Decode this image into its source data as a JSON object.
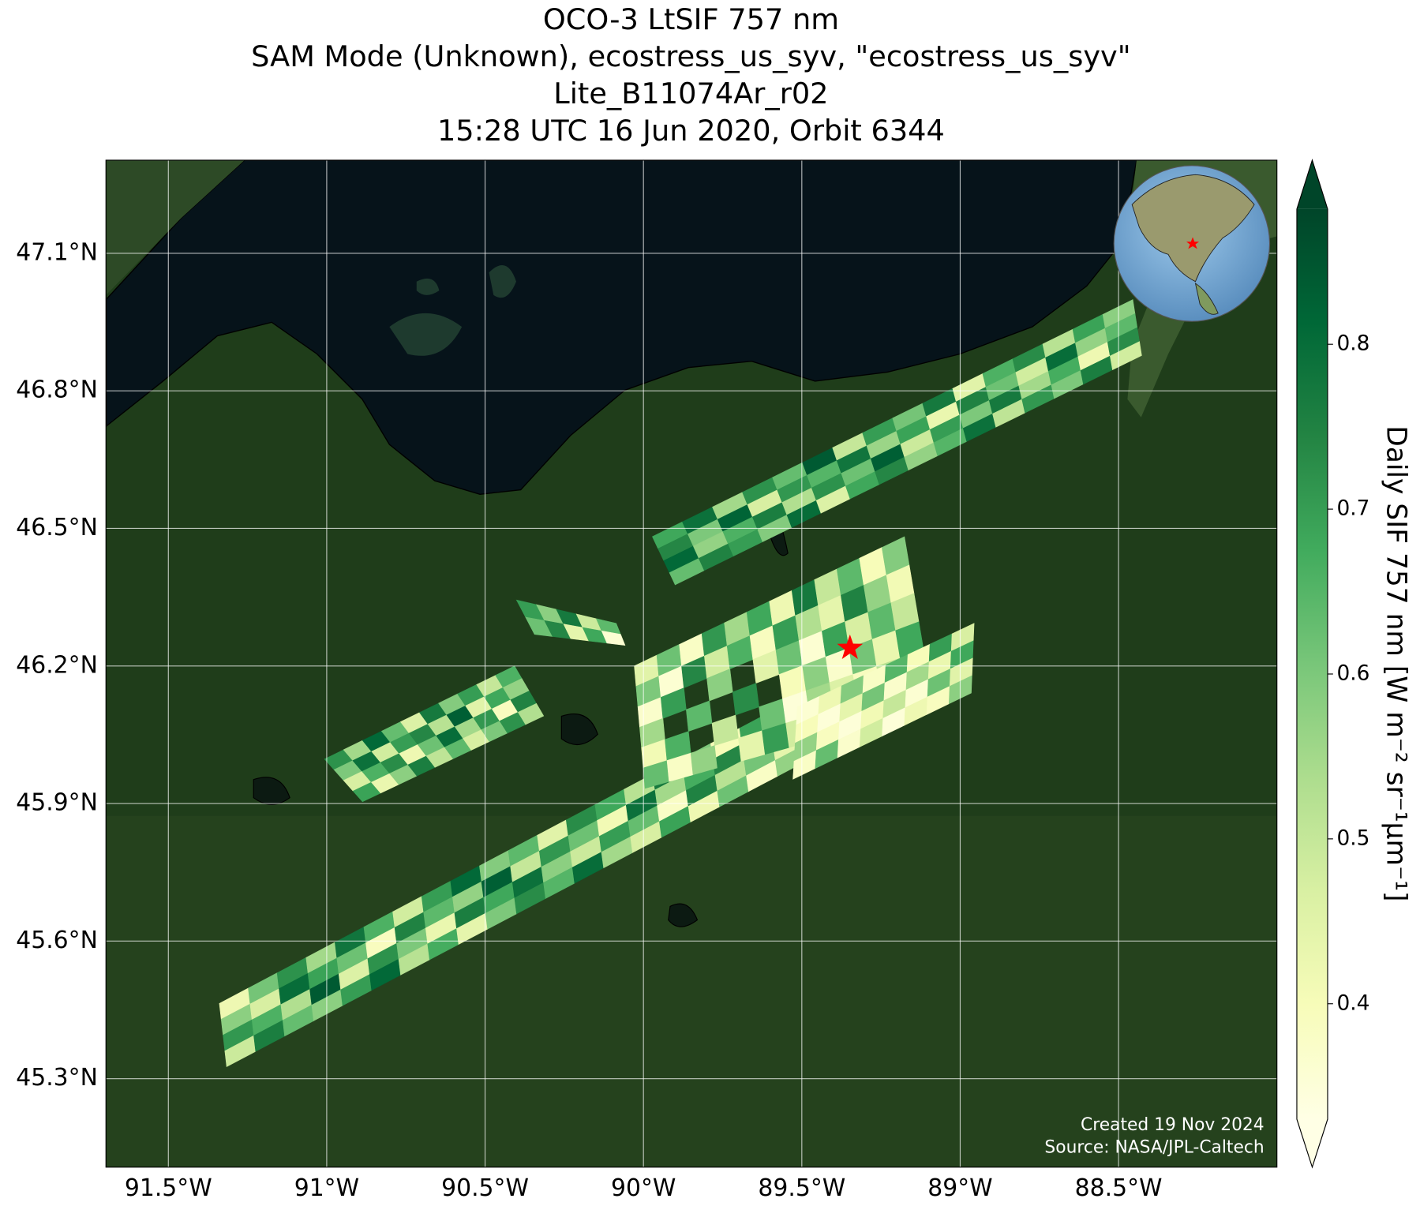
{
  "chart_data": {
    "type": "map",
    "title": [
      "OCO-3 LtSIF 757 nm",
      "SAM Mode (Unknown), ecostress_us_syv, \"ecostress_us_syv\"",
      "Lite_B11074Ar_r02",
      "15:28 UTC 16 Jun 2020, Orbit 6344"
    ],
    "xlim": [
      -91.697,
      -88.0
    ],
    "ylim": [
      45.107,
      47.303
    ],
    "xticks": [
      {
        "value": -91.5,
        "label": "91.5°W"
      },
      {
        "value": -91,
        "label": "91°W"
      },
      {
        "value": -90.5,
        "label": "90.5°W"
      },
      {
        "value": -90,
        "label": "90°W"
      },
      {
        "value": -89.5,
        "label": "89.5°W"
      },
      {
        "value": -89,
        "label": "89°W"
      },
      {
        "value": -88.5,
        "label": "88.5°W"
      }
    ],
    "yticks": [
      {
        "value": 47.1,
        "label": "47.1°N"
      },
      {
        "value": 46.8,
        "label": "46.8°N"
      },
      {
        "value": 46.5,
        "label": "46.5°N"
      },
      {
        "value": 46.2,
        "label": "46.2°N"
      },
      {
        "value": 45.9,
        "label": "45.9°N"
      },
      {
        "value": 45.6,
        "label": "45.6°N"
      },
      {
        "value": 45.3,
        "label": "45.3°N"
      }
    ],
    "grid": true,
    "colorbar": {
      "label": "Daily SIF 757 nm [W m⁻² sr⁻¹μm⁻¹]",
      "lim": [
        0.33,
        0.882
      ],
      "ticks": [
        0.4,
        0.5,
        0.6,
        0.7,
        0.8
      ],
      "extend": "both",
      "colormap": [
        "#ffffe5",
        "#f7fcb9",
        "#d9f0a3",
        "#addd8e",
        "#78c679",
        "#41ab5d",
        "#238443",
        "#006837",
        "#004529"
      ]
    },
    "site": {
      "lon": -89.348,
      "lat": 46.239,
      "color": "#ff0000"
    },
    "swaths": [
      {
        "lon": [
          -91.339,
          -91.316,
          -89.514,
          -89.485
        ],
        "lat": [
          45.464,
          45.326,
          46.131,
          45.993
        ],
        "values": [
          [
            0.42,
            0.61,
            0.72,
            0.55,
            0.78,
            0.66,
            0.48,
            0.7,
            0.81,
            0.59,
            0.64,
            0.45,
            0.73,
            0.68,
            0.52,
            0.77,
            0.6,
            0.4,
            0.69,
            0.57
          ],
          [
            0.58,
            0.47,
            0.8,
            0.69,
            0.62,
            0.39,
            0.75,
            0.64,
            0.57,
            0.83,
            0.5,
            0.71,
            0.62,
            0.41,
            0.79,
            0.55,
            0.67,
            0.74,
            0.45,
            0.63
          ],
          [
            0.71,
            0.66,
            0.53,
            0.84,
            0.46,
            0.72,
            0.6,
            0.43,
            0.76,
            0.68,
            0.79,
            0.58,
            0.49,
            0.7,
            0.63,
            0.38,
            0.75,
            0.52,
            0.61,
            0.44
          ],
          [
            0.49,
            0.76,
            0.63,
            0.58,
            0.7,
            0.81,
            0.52,
            0.67,
            0.44,
            0.6,
            0.73,
            0.65,
            0.8,
            0.55,
            0.47,
            0.69,
            0.42,
            0.62,
            0.38,
            0.57
          ]
        ]
      },
      {
        "lon": [
          -89.972,
          -89.9,
          -88.455,
          -88.427
        ],
        "lat": [
          46.482,
          46.377,
          46.999,
          46.877
        ],
        "values": [
          [
            0.68,
            0.79,
            0.55,
            0.72,
            0.63,
            0.84,
            0.5,
            0.7,
            0.61,
            0.77,
            0.45,
            0.66,
            0.73,
            0.52,
            0.69,
            0.58
          ],
          [
            0.74,
            0.6,
            0.82,
            0.47,
            0.71,
            0.65,
            0.78,
            0.56,
            0.69,
            0.43,
            0.75,
            0.62,
            0.48,
            0.8,
            0.57,
            0.64
          ],
          [
            0.81,
            0.57,
            0.66,
            0.76,
            0.53,
            0.72,
            0.62,
            0.83,
            0.49,
            0.7,
            0.6,
            0.77,
            0.55,
            0.67,
            0.42,
            0.73
          ],
          [
            0.63,
            0.75,
            0.7,
            0.59,
            0.8,
            0.46,
            0.68,
            0.74,
            0.57,
            0.65,
            0.79,
            0.51,
            0.71,
            0.6,
            0.76,
            0.48
          ]
        ]
      },
      {
        "lon": [
          -90.029,
          -89.995,
          -89.176,
          -89.085
        ],
        "lat": [
          46.2,
          45.933,
          46.482,
          46.111
        ],
        "values": [
          [
            0.45,
            0.62,
            0.38,
            0.71,
            0.55,
            0.68,
            0.42,
            0.77,
            0.5,
            0.64,
            0.4,
            0.59
          ],
          [
            0.6,
            0.36,
            0.74,
            0.48,
            0.66,
            0.39,
            0.7,
            0.53,
            0.44,
            0.75,
            0.57,
            0.41
          ],
          [
            0.37,
            0.7,
            null,
            0.58,
            null,
            0.45,
            0.62,
            0.36,
            0.69,
            0.47,
            0.64,
            0.5
          ],
          [
            0.55,
            null,
            0.64,
            null,
            0.73,
            null,
            0.4,
            0.58,
            0.37,
            0.61,
            0.43,
            0.68
          ],
          [
            0.41,
            0.66,
            null,
            0.5,
            null,
            0.62,
            0.35,
            0.55,
            0.46,
            0.39,
            0.52,
            0.36
          ],
          [
            0.63,
            0.38,
            0.57,
            null,
            0.44,
            0.7,
            0.48,
            0.37,
            0.6,
            0.42,
            0.35,
            0.47
          ]
        ]
      },
      {
        "lon": [
          -89.514,
          -89.528,
          -88.956,
          -88.965
        ],
        "lat": [
          46.111,
          45.953,
          46.293,
          46.141
        ],
        "values": [
          [
            0.36,
            0.42,
            0.59,
            0.38,
            0.65,
            0.4,
            0.7,
            0.47
          ],
          [
            0.4,
            0.35,
            0.44,
            0.61,
            0.37,
            0.55,
            0.43,
            0.68
          ],
          [
            0.57,
            0.39,
            0.35,
            0.41,
            0.5,
            0.36,
            0.62,
            0.45
          ],
          [
            0.38,
            0.63,
            0.37,
            0.48,
            0.35,
            0.42,
            0.39,
            0.58
          ]
        ]
      },
      {
        "lon": [
          -91.007,
          -90.887,
          -90.407,
          -90.315
        ],
        "lat": [
          45.997,
          45.904,
          46.2,
          46.091
        ],
        "values": [
          [
            0.72,
            0.55,
            0.81,
            0.63,
            0.46,
            0.77,
            0.59,
            0.7,
            0.5,
            0.66
          ],
          [
            0.6,
            0.79,
            0.48,
            0.7,
            0.74,
            0.52,
            0.83,
            0.45,
            0.68,
            0.57
          ],
          [
            0.47,
            0.66,
            0.73,
            0.42,
            0.62,
            0.8,
            0.55,
            0.71,
            0.39,
            0.75
          ],
          [
            0.69,
            0.43,
            0.58,
            0.76,
            0.51,
            0.64,
            0.47,
            0.6,
            0.72,
            0.53
          ]
        ]
      },
      {
        "lon": [
          -90.401,
          -90.344,
          -90.086,
          -90.058
        ],
        "lat": [
          46.344,
          46.269,
          46.293,
          46.245
        ],
        "values": [
          [
            0.7,
            0.58,
            0.77,
            0.49,
            0.64
          ],
          [
            0.62,
            0.74,
            0.44,
            0.68,
            0.36
          ]
        ]
      }
    ],
    "credit": [
      "Created 19 Nov 2024",
      "Source: NASA/JPL-Caltech"
    ]
  }
}
